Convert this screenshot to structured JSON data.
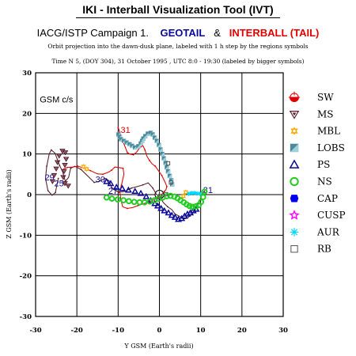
{
  "window": {
    "title": "IKI - Interball Visualization Tool (IVT)"
  },
  "header": {
    "campaign": "IACG/ISTP Campaign 1.",
    "spacecraft_a": "GEOTAIL",
    "joiner": "&",
    "spacecraft_b": "INTERBALL (TAIL)",
    "subtitle": "Orbit projection into the dawn-dusk plane, labeled with 1 h step by the regions symbols",
    "time_line": "Time N 5, (DOY 304), 31 October  1995 ,  UTC 8:0 - 19:30 (labeled by bigger symbols)"
  },
  "chart_data": {
    "type": "scatter",
    "title": "",
    "xlabel": "Y GSM (Earth's radii)",
    "ylabel": "Z GSM (Earth's radii)",
    "xlim": [
      -30,
      30
    ],
    "ylim": [
      -30,
      30
    ],
    "xticks": [
      -30,
      -20,
      -10,
      0,
      10,
      20,
      30
    ],
    "yticks": [
      -30,
      -20,
      -10,
      0,
      10,
      20,
      30
    ],
    "grid": true,
    "frame_label": "GSM c/s",
    "legend_position": "right",
    "legend": [
      {
        "label": "SW",
        "icon": "sw-icon",
        "color": "#e00000"
      },
      {
        "label": "MS",
        "icon": "ms-icon",
        "color": "#5a1a2a"
      },
      {
        "label": "MBL",
        "icon": "mbl-icon",
        "color": "#ffaa00"
      },
      {
        "label": "LOBS",
        "icon": "lobs-icon",
        "color": "#4a8a9a"
      },
      {
        "label": "PS",
        "icon": "ps-icon",
        "color": "#0a0a9a"
      },
      {
        "label": "NS",
        "icon": "ns-icon",
        "color": "#22cc22"
      },
      {
        "label": "CAP",
        "icon": "cap-icon",
        "color": "#0000ee"
      },
      {
        "label": "CUSP",
        "icon": "cusp-icon",
        "color": "#ff00ff"
      },
      {
        "label": "AUR",
        "icon": "aur-icon",
        "color": "#00d8ff"
      },
      {
        "label": "RB",
        "icon": "rb-icon",
        "color": "#555555"
      }
    ],
    "series": [
      {
        "name": "GEOTAIL",
        "color": "#5a1a2a",
        "points": [
          [
            -24.5,
            4.0
          ],
          [
            -24.8,
            2.5
          ],
          [
            -25.2,
            0.5
          ],
          [
            -26.0,
            -0.2
          ],
          [
            -27.0,
            1.0
          ],
          [
            -27.6,
            4.0
          ],
          [
            -27.3,
            7.0
          ],
          [
            -26.7,
            10.0
          ],
          [
            -26.2,
            11.0
          ],
          [
            -25.3,
            10.2
          ],
          [
            -24.2,
            7.2
          ],
          [
            -23.4,
            5.5
          ],
          [
            -22.8,
            3.3
          ],
          [
            -22.0,
            4.2
          ],
          [
            -21.5,
            6.5
          ],
          [
            -20.5,
            7.0
          ],
          [
            -19.0,
            6.2
          ],
          [
            -17.3,
            4.5
          ],
          [
            -15.8,
            3.0
          ],
          [
            -14.5,
            3.3
          ],
          [
            -13.2,
            4.0
          ],
          [
            -12.2,
            3.4
          ],
          [
            -11.6,
            1.8
          ],
          [
            -11.0,
            1.2
          ],
          [
            -9.8,
            0.6
          ],
          [
            -8.3,
            0.8
          ],
          [
            -6.8,
            1.6
          ],
          [
            -5.3,
            2.0
          ],
          [
            -4.0,
            2.4
          ],
          [
            -2.7,
            2.9
          ],
          [
            -1.6,
            1.6
          ],
          [
            -0.8,
            0.2
          ],
          [
            0.2,
            -0.8
          ],
          [
            1.0,
            -2.0
          ],
          [
            2.0,
            -3.0
          ],
          [
            3.0,
            -3.7
          ],
          [
            3.8,
            -4.8
          ],
          [
            4.8,
            -5.3
          ],
          [
            5.8,
            -6.0
          ],
          [
            6.8,
            -5.8
          ],
          [
            7.6,
            -5.0
          ],
          [
            8.6,
            -3.9
          ],
          [
            9.2,
            -2.7
          ],
          [
            9.8,
            -1.5
          ],
          [
            10.2,
            0.0
          ],
          [
            11.0,
            1.0
          ]
        ],
        "labels": [
          {
            "text": "29",
            "x": -27.8,
            "y": 3.5
          },
          {
            "text": "25",
            "x": -25.5,
            "y": 2.0
          },
          {
            "text": "30",
            "x": -15.5,
            "y": 3.0
          },
          {
            "text": "27",
            "x": -12.4,
            "y": 0.2
          },
          {
            "text": "31",
            "x": 10.6,
            "y": 0.4
          }
        ]
      },
      {
        "name": "INTERBALL (TAIL)",
        "color": "#e00000",
        "points": [
          [
            -10.0,
            16.5
          ],
          [
            -9.5,
            15.2
          ],
          [
            -8.8,
            13.0
          ],
          [
            -8.2,
            11.5
          ],
          [
            -7.8,
            10.4
          ],
          [
            -7.2,
            10.0
          ],
          [
            -6.3,
            9.8
          ],
          [
            -5.5,
            10.5
          ],
          [
            -4.8,
            11.5
          ],
          [
            -4.0,
            12.1
          ],
          [
            -3.5,
            11.0
          ],
          [
            -3.0,
            9.4
          ],
          [
            -2.4,
            8.4
          ],
          [
            -1.8,
            7.6
          ],
          [
            -1.0,
            7.0
          ],
          [
            -0.3,
            6.0
          ],
          [
            0.6,
            4.7
          ],
          [
            1.4,
            3.0
          ],
          [
            1.8,
            2.0
          ],
          [
            1.6,
            1.2
          ],
          [
            1.2,
            0.8
          ],
          [
            0.6,
            0.0
          ],
          [
            -0.3,
            -0.6
          ],
          [
            -1.5,
            -1.4
          ],
          [
            -2.8,
            -1.9
          ],
          [
            -4.0,
            -2.3
          ],
          [
            -5.2,
            -2.7
          ],
          [
            -6.5,
            -3.2
          ],
          [
            -7.8,
            -3.4
          ],
          [
            -8.9,
            -3.0
          ],
          [
            -9.3,
            -1.5
          ],
          [
            -9.6,
            0.8
          ],
          [
            -9.2,
            2.3
          ],
          [
            -8.6,
            5.0
          ],
          [
            -8.8,
            6.5
          ],
          [
            -10.8,
            6.8
          ],
          [
            -11.6,
            6.0
          ],
          [
            -12.4,
            5.5
          ],
          [
            -13.7,
            5.0
          ],
          [
            -15.0,
            5.1
          ],
          [
            -16.7,
            5.9
          ],
          [
            -18.4,
            6.6
          ],
          [
            -19.8,
            7.0
          ],
          [
            -21.0,
            6.8
          ],
          [
            -22.3,
            6.7
          ],
          [
            -23.3,
            6.3
          ]
        ],
        "labels": [
          {
            "text": "31",
            "x": -9.4,
            "y": 15.2
          }
        ]
      }
    ],
    "regions": [
      {
        "name": "LOBS",
        "color": "#4a8a9a",
        "points": [
          [
            -9.9,
            14.8
          ],
          [
            -9.6,
            14.2
          ],
          [
            -9.3,
            13.6
          ],
          [
            -8.6,
            13.2
          ],
          [
            -7.9,
            12.8
          ],
          [
            -7.2,
            12.4
          ],
          [
            -6.6,
            12.0
          ],
          [
            -5.9,
            11.6
          ],
          [
            -5.1,
            11.9
          ],
          [
            -4.5,
            12.6
          ],
          [
            -4.2,
            13.2
          ],
          [
            -3.9,
            13.8
          ],
          [
            -3.4,
            14.4
          ],
          [
            -2.8,
            15.0
          ],
          [
            -2.1,
            15.2
          ],
          [
            -1.6,
            14.8
          ],
          [
            -1.1,
            14.0
          ],
          [
            -0.6,
            13.2
          ],
          [
            -0.1,
            12.2
          ],
          [
            0.3,
            11.1
          ],
          [
            0.7,
            10.0
          ],
          [
            1.1,
            8.9
          ],
          [
            1.5,
            7.8
          ],
          [
            1.8,
            6.7
          ],
          [
            2.1,
            5.7
          ],
          [
            2.5,
            4.6
          ],
          [
            2.9,
            3.5
          ],
          [
            3.1,
            2.5
          ]
        ]
      },
      {
        "name": "MS",
        "color": "#5a1a2a",
        "points": [
          [
            -25.9,
            3.3
          ],
          [
            -25.5,
            4.8
          ],
          [
            -25.0,
            6.4
          ],
          [
            -24.7,
            8.0
          ],
          [
            -24.3,
            9.6
          ],
          [
            -23.5,
            10.8
          ],
          [
            -22.8,
            10.4
          ],
          [
            -22.6,
            8.8
          ],
          [
            -22.9,
            7.3
          ],
          [
            -23.1,
            5.8
          ],
          [
            -23.3,
            4.3
          ],
          [
            -22.9,
            2.8
          ],
          [
            -22.1,
            2.2
          ]
        ]
      },
      {
        "name": "MBL",
        "color": "#ffaa00",
        "points": [
          [
            -18.4,
            6.9
          ],
          [
            -17.6,
            6.3
          ],
          [
            5.8,
            -0.4
          ],
          [
            6.4,
            0.6
          ]
        ]
      },
      {
        "name": "PS",
        "color": "#0a0a9a",
        "points": [
          [
            -12.8,
            3.2
          ],
          [
            -11.8,
            2.7
          ],
          [
            -10.4,
            1.8
          ],
          [
            -9.0,
            1.5
          ],
          [
            -7.5,
            1.1
          ],
          [
            -5.9,
            0.8
          ],
          [
            -4.5,
            0.3
          ],
          [
            -3.2,
            -0.5
          ],
          [
            -2.1,
            -1.5
          ],
          [
            -1.1,
            -2.2
          ],
          [
            -0.4,
            -2.8
          ],
          [
            0.4,
            -3.4
          ],
          [
            1.2,
            -4.0
          ],
          [
            2.2,
            -4.5
          ],
          [
            3.0,
            -5.1
          ],
          [
            3.8,
            -5.6
          ],
          [
            4.6,
            -6.1
          ],
          [
            5.4,
            -5.9
          ],
          [
            6.1,
            -5.3
          ],
          [
            6.8,
            -4.8
          ],
          [
            7.5,
            -4.5
          ],
          [
            8.2,
            -4.0
          ],
          [
            8.9,
            -3.6
          ]
        ]
      },
      {
        "name": "NS",
        "color": "#22cc22",
        "points": [
          [
            -12.8,
            -0.7
          ],
          [
            -11.5,
            -1.0
          ],
          [
            -10.1,
            -1.2
          ],
          [
            -8.7,
            -1.4
          ],
          [
            -7.4,
            -1.6
          ],
          [
            -6.1,
            -1.8
          ],
          [
            -4.8,
            -1.9
          ],
          [
            -3.6,
            -1.9
          ],
          [
            -2.3,
            -1.7
          ],
          [
            -1.2,
            -1.4
          ],
          [
            -0.2,
            -1.0
          ],
          [
            0.8,
            -0.7
          ],
          [
            1.8,
            -0.4
          ],
          [
            2.7,
            -0.3
          ],
          [
            3.6,
            -0.5
          ],
          [
            4.4,
            -0.9
          ],
          [
            5.1,
            -1.4
          ],
          [
            5.9,
            -1.9
          ],
          [
            6.6,
            -2.4
          ],
          [
            7.3,
            -2.8
          ],
          [
            8.0,
            -3.0
          ],
          [
            8.8,
            -2.9
          ],
          [
            9.5,
            -2.6
          ],
          [
            10.1,
            -1.8
          ],
          [
            10.6,
            -0.6
          ],
          [
            10.9,
            0.7
          ]
        ]
      },
      {
        "name": "AUR",
        "color": "#00d8ff",
        "points": [
          [
            7.1,
            0.2
          ],
          [
            7.8,
            0.4
          ],
          [
            8.5,
            0.4
          ],
          [
            9.1,
            0.3
          ],
          [
            9.8,
            0.2
          ]
        ]
      },
      {
        "name": "RB",
        "color": "#555555",
        "points": [
          [
            0.2,
            -0.3
          ],
          [
            1.6,
            0.1
          ],
          [
            2.1,
            7.7
          ],
          [
            2.8,
            3.0
          ]
        ]
      }
    ]
  }
}
